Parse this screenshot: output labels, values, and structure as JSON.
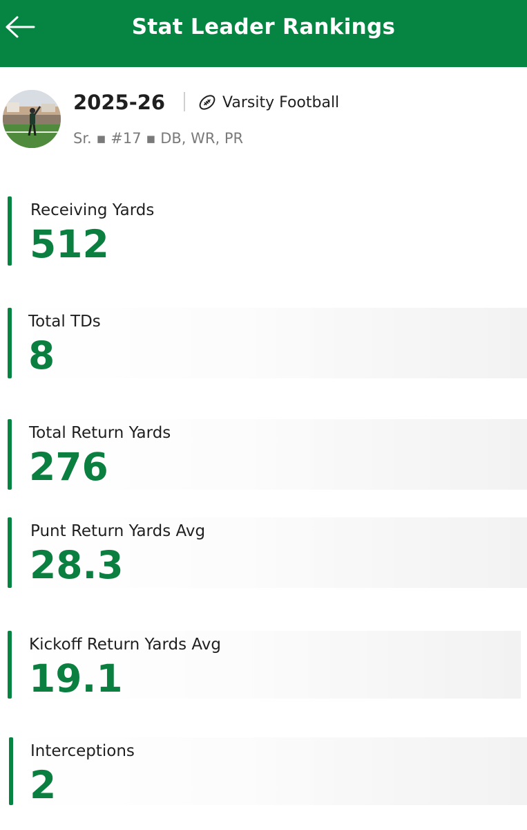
{
  "header": {
    "title": "Stat Leader Rankings"
  },
  "profile": {
    "season": "2025-26",
    "sport": "Varsity Football",
    "meta": "Sr. ▪ #17 ▪ DB, WR, PR"
  },
  "stats": [
    {
      "label": "Receiving Yards",
      "value": "512"
    },
    {
      "label": "Total TDs",
      "value": "8"
    },
    {
      "label": "Total Return Yards",
      "value": "276"
    },
    {
      "label": "Punt Return Yards Avg",
      "value": "28.3"
    },
    {
      "label": "Kickoff Return Yards Avg",
      "value": "19.1"
    },
    {
      "label": "Interceptions",
      "value": "2"
    }
  ],
  "colors": {
    "brand": "#068442",
    "stat_value": "#0a7f3f"
  },
  "icons": {
    "back": "back-arrow-icon",
    "sport": "football-icon"
  }
}
